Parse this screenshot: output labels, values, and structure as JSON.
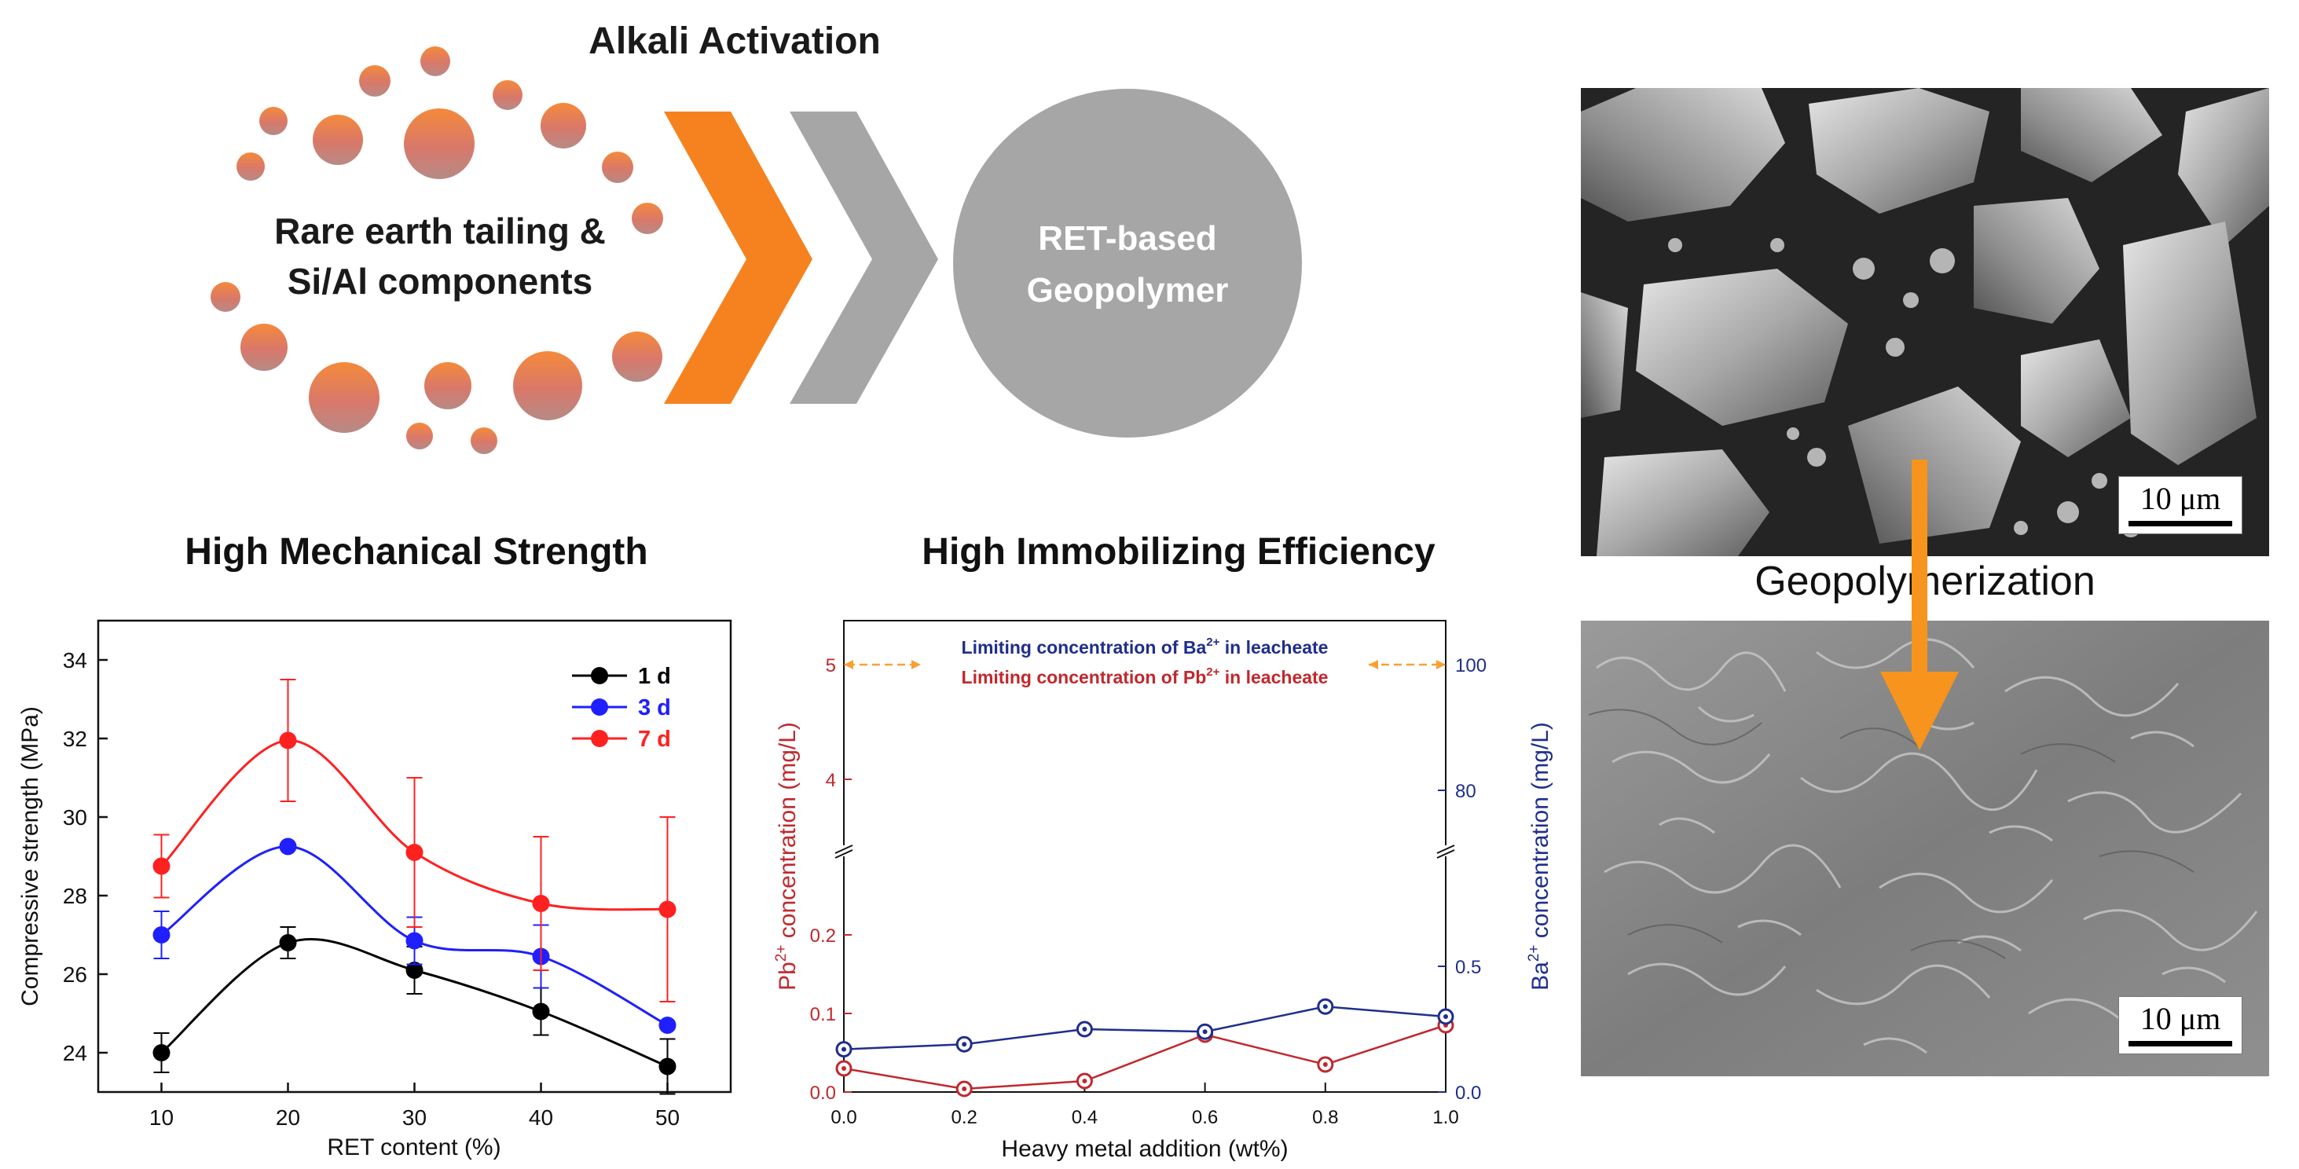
{
  "top": {
    "process_label": "Alkali Activation",
    "raw_materials_line1": "Rare earth tailing &",
    "raw_materials_line2": "Si/Al components",
    "product_line1": "RET-based",
    "product_line2": "Geopolymer",
    "colors": {
      "arrow_orange": "#f5821f",
      "arrow_gray": "#a6a6a6",
      "product_circle": "#a6a6a6"
    }
  },
  "sem": {
    "scale_top": "10 μm",
    "scale_bottom": "10 μm",
    "process_label": "Geopolymerization",
    "arrow_color": "#f7941d"
  },
  "strength_panel": {
    "heading": "High Mechanical Strength",
    "chart_data": {
      "type": "line",
      "xlabel": "RET content (%)",
      "ylabel": "Compressive strength (MPa)",
      "xlim": [
        5,
        55
      ],
      "ylim": [
        23,
        35
      ],
      "x_ticks": [
        10,
        20,
        30,
        40,
        50
      ],
      "y_ticks": [
        24,
        26,
        28,
        30,
        32,
        34
      ],
      "legend_position": "top-right",
      "x": [
        10,
        20,
        30,
        40,
        50
      ],
      "series": [
        {
          "name": "1 d",
          "color": "#000000",
          "values": [
            24.0,
            26.8,
            26.1,
            25.05,
            23.65
          ],
          "errors": [
            0.5,
            0.4,
            0.6,
            0.6,
            0.7
          ]
        },
        {
          "name": "3 d",
          "color": "#1f1fff",
          "values": [
            27.0,
            29.25,
            26.85,
            26.45,
            24.7
          ],
          "errors": [
            0.6,
            0.0,
            0.6,
            0.8,
            0.0
          ]
        },
        {
          "name": "7 d",
          "color": "#ff2020",
          "values": [
            28.75,
            31.95,
            29.1,
            27.8,
            27.65
          ],
          "errors": [
            0.8,
            1.55,
            1.9,
            1.7,
            2.35
          ]
        }
      ]
    }
  },
  "immobilize_panel": {
    "heading": "High Immobilizing Efficiency",
    "chart_data": {
      "type": "line",
      "xlabel": "Heavy metal addition (wt%)",
      "ylabel_left_main": "Pb",
      "ylabel_left_sup": "2+",
      "ylabel_left_rest": " concentration (mg/L)",
      "ylabel_right_main": "Ba",
      "ylabel_right_sup": "2+",
      "ylabel_right_rest": " concentration (mg/L)",
      "xlim": [
        0,
        1.0
      ],
      "x_ticks": [
        "0.0",
        "0.2",
        "0.4",
        "0.6",
        "0.8",
        "1.0"
      ],
      "left_ticks_low": [
        "0.0",
        "0.1",
        "0.2"
      ],
      "left_ticks_high": [
        "4",
        "5"
      ],
      "right_ticks_low": [
        "0.0",
        "0.5"
      ],
      "right_ticks_high": [
        "80",
        "100"
      ],
      "limit_ba_prefix": "Limiting concentration of Ba",
      "limit_ba_sup": "2+",
      "limit_ba_suffix": " in leacheate",
      "limit_ba_value": 100,
      "limit_pb_prefix": "Limiting concentration of Pb",
      "limit_pb_sup": "2+",
      "limit_pb_suffix": " in leacheate",
      "limit_pb_value": 5,
      "x": [
        0.0,
        0.2,
        0.4,
        0.6,
        0.8,
        1.0
      ],
      "series": [
        {
          "name": "Pb",
          "axis": "left",
          "color": "#c0282d",
          "values": [
            0.03,
            0.004,
            0.014,
            0.073,
            0.035,
            0.085
          ]
        },
        {
          "name": "Ba",
          "axis": "right",
          "color": "#1f2e8c",
          "values": [
            0.17,
            0.19,
            0.25,
            0.24,
            0.34,
            0.3
          ]
        }
      ],
      "colors": {
        "left_axis": "#c0282d",
        "right_axis": "#1f2e8c",
        "limit_arrow": "#f7a134"
      }
    }
  }
}
